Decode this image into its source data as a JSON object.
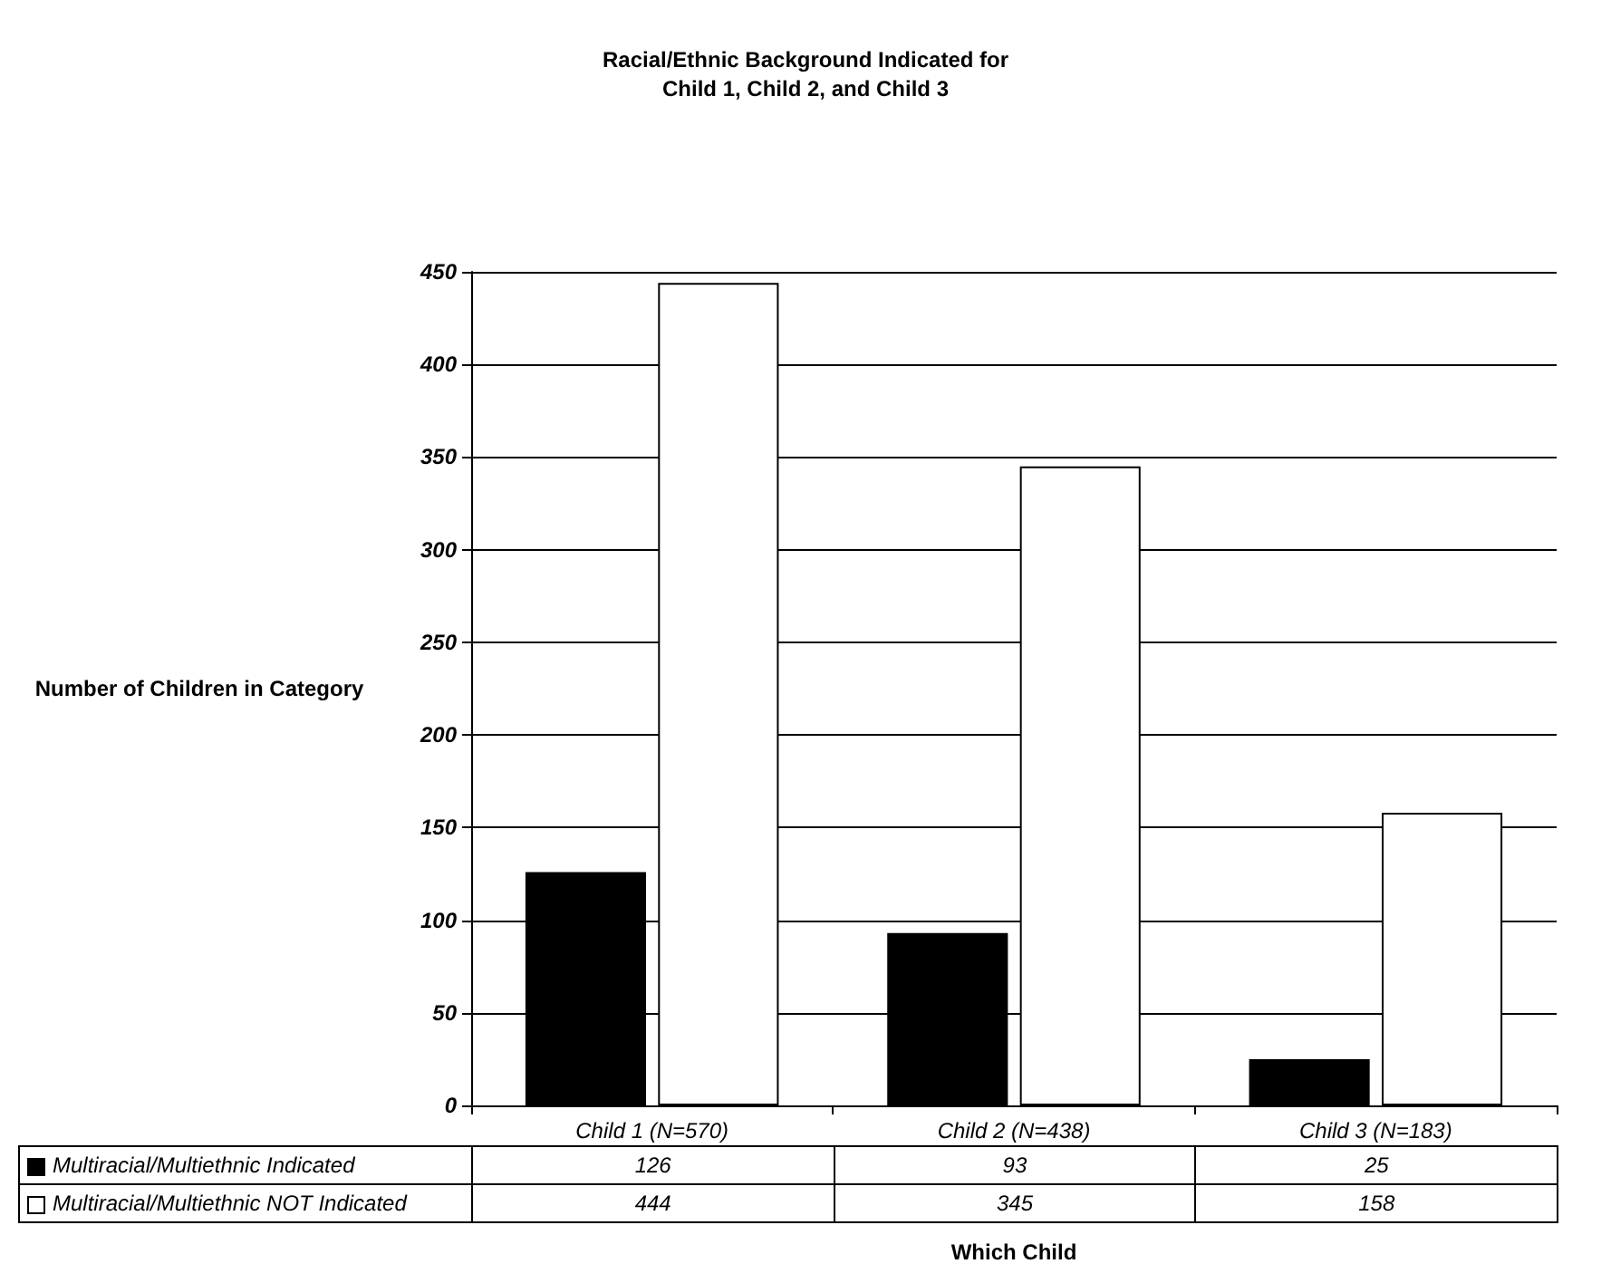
{
  "chart_data": {
    "type": "bar",
    "title": "Racial/Ethnic Background Indicated for\nChild 1, Child 2, and Child 3",
    "xlabel": "Which Child",
    "ylabel": "Number of Children in Category",
    "categories": [
      "Child 1 (N=570)",
      "Child 2 (N=438)",
      "Child 3 (N=183)"
    ],
    "series": [
      {
        "name": "Multiracial/Multiethnic Indicated",
        "color": "#000000",
        "values": [
          126,
          93,
          25
        ]
      },
      {
        "name": "Multiracial/Multiethnic NOT Indicated",
        "color": "#ffffff",
        "values": [
          444,
          345,
          158
        ]
      }
    ],
    "ylim": [
      0,
      450
    ],
    "yticks": [
      0,
      50,
      100,
      150,
      200,
      250,
      300,
      350,
      400,
      450
    ],
    "grid": "y",
    "legend": "bottom left",
    "data_labels": true
  }
}
